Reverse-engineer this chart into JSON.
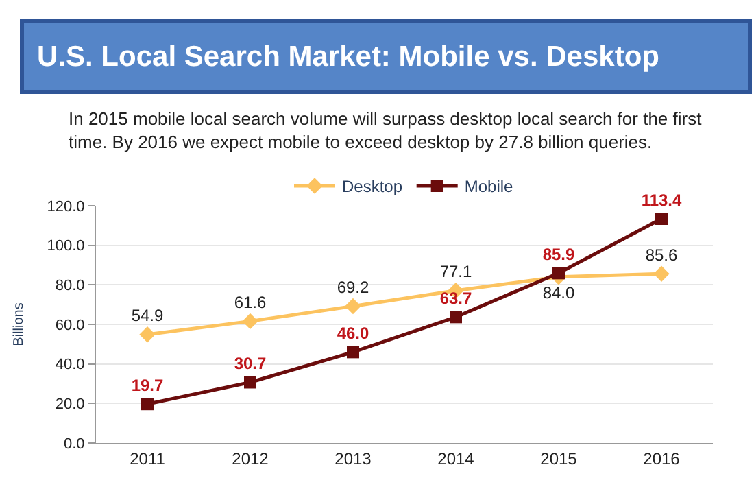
{
  "chart_data": {
    "type": "line",
    "title": "U.S. Local Search Market: Mobile vs. Desktop",
    "subtitle": "In 2015 mobile local search volume will surpass desktop local search for the first time. By 2016 we expect mobile to exceed desktop by 27.8 billion queries.",
    "ylabel": "Billions",
    "categories": [
      "2011",
      "2012",
      "2013",
      "2014",
      "2015",
      "2016"
    ],
    "series": [
      {
        "name": "Desktop",
        "color": "#fcc35f",
        "marker": "diamond",
        "values": [
          54.9,
          61.6,
          69.2,
          77.1,
          84.0,
          85.6
        ],
        "value_labels": [
          "54.9",
          "61.6",
          "69.2",
          "77.1",
          "84.0",
          "85.6"
        ]
      },
      {
        "name": "Mobile",
        "color": "#6b0c0c",
        "marker": "square",
        "values": [
          19.7,
          30.7,
          46.0,
          63.7,
          85.9,
          113.4
        ],
        "value_labels": [
          "19.7",
          "30.7",
          "46.0",
          "63.7",
          "85.9",
          "113.4"
        ]
      }
    ],
    "ylim": [
      0,
      120
    ],
    "yticks": [
      {
        "value": 0,
        "label": "0.0"
      },
      {
        "value": 20,
        "label": "20.0"
      },
      {
        "value": 40,
        "label": "40.0"
      },
      {
        "value": 60,
        "label": "60.0"
      },
      {
        "value": 80,
        "label": "80.0"
      },
      {
        "value": 100,
        "label": "100.0"
      },
      {
        "value": 120,
        "label": "120.0"
      }
    ],
    "grid": "y",
    "legend": "top",
    "line_style": "solid"
  }
}
